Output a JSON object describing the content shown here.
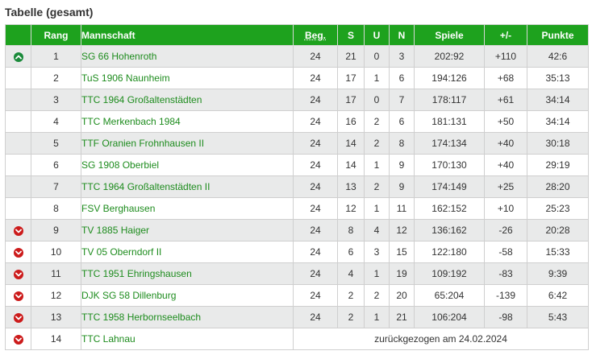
{
  "title": "Tabelle (gesamt)",
  "headers": {
    "status": "",
    "rang": "Rang",
    "mannschaft": "Mannschaft",
    "beg": "Beg.",
    "s": "S",
    "u": "U",
    "n": "N",
    "spiele": "Spiele",
    "diff": "+/-",
    "punkte": "Punkte"
  },
  "rows": [
    {
      "trend": "up",
      "rang": "1",
      "team": "SG 66 Hohenroth",
      "beg": "24",
      "s": "21",
      "u": "0",
      "n": "3",
      "spiele": "202:92",
      "diff": "+110",
      "punkte": "42:6"
    },
    {
      "trend": "",
      "rang": "2",
      "team": "TuS 1906 Naunheim",
      "beg": "24",
      "s": "17",
      "u": "1",
      "n": "6",
      "spiele": "194:126",
      "diff": "+68",
      "punkte": "35:13"
    },
    {
      "trend": "",
      "rang": "3",
      "team": "TTC 1964 Großaltenstädten",
      "beg": "24",
      "s": "17",
      "u": "0",
      "n": "7",
      "spiele": "178:117",
      "diff": "+61",
      "punkte": "34:14"
    },
    {
      "trend": "",
      "rang": "4",
      "team": "TTC Merkenbach 1984",
      "beg": "24",
      "s": "16",
      "u": "2",
      "n": "6",
      "spiele": "181:131",
      "diff": "+50",
      "punkte": "34:14"
    },
    {
      "trend": "",
      "rang": "5",
      "team": "TTF Oranien Frohnhausen II",
      "beg": "24",
      "s": "14",
      "u": "2",
      "n": "8",
      "spiele": "174:134",
      "diff": "+40",
      "punkte": "30:18"
    },
    {
      "trend": "",
      "rang": "6",
      "team": "SG 1908 Oberbiel",
      "beg": "24",
      "s": "14",
      "u": "1",
      "n": "9",
      "spiele": "170:130",
      "diff": "+40",
      "punkte": "29:19"
    },
    {
      "trend": "",
      "rang": "7",
      "team": "TTC 1964 Großaltenstädten II",
      "beg": "24",
      "s": "13",
      "u": "2",
      "n": "9",
      "spiele": "174:149",
      "diff": "+25",
      "punkte": "28:20"
    },
    {
      "trend": "",
      "rang": "8",
      "team": "FSV Berghausen",
      "beg": "24",
      "s": "12",
      "u": "1",
      "n": "11",
      "spiele": "162:152",
      "diff": "+10",
      "punkte": "25:23"
    },
    {
      "trend": "down",
      "rang": "9",
      "team": "TV 1885 Haiger",
      "beg": "24",
      "s": "8",
      "u": "4",
      "n": "12",
      "spiele": "136:162",
      "diff": "-26",
      "punkte": "20:28"
    },
    {
      "trend": "down",
      "rang": "10",
      "team": "TV 05 Oberndorf II",
      "beg": "24",
      "s": "6",
      "u": "3",
      "n": "15",
      "spiele": "122:180",
      "diff": "-58",
      "punkte": "15:33"
    },
    {
      "trend": "down",
      "rang": "11",
      "team": "TTC 1951 Ehringshausen",
      "beg": "24",
      "s": "4",
      "u": "1",
      "n": "19",
      "spiele": "109:192",
      "diff": "-83",
      "punkte": "9:39"
    },
    {
      "trend": "down",
      "rang": "12",
      "team": "DJK SG 58 Dillenburg",
      "beg": "24",
      "s": "2",
      "u": "2",
      "n": "20",
      "spiele": "65:204",
      "diff": "-139",
      "punkte": "6:42"
    },
    {
      "trend": "down",
      "rang": "13",
      "team": "TTC 1958 Herbornseelbach",
      "beg": "24",
      "s": "2",
      "u": "1",
      "n": "21",
      "spiele": "106:204",
      "diff": "-98",
      "punkte": "5:43"
    }
  ],
  "withdrawn_row": {
    "trend": "down",
    "rang": "14",
    "team": "TTC Lahnau",
    "note": "zurückgezogen am 24.02.2024"
  },
  "colors": {
    "header_green": "#1ea21e",
    "link_green": "#1e8c1e",
    "up_green": "#1a8a3a",
    "down_red": "#cc1b1b"
  },
  "icons": {
    "up": "chevron-up-circle-icon",
    "down": "chevron-down-circle-icon"
  }
}
